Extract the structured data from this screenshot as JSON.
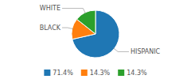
{
  "chart_data": {
    "type": "pie",
    "categories": [
      "HISPANIC",
      "BLACK",
      "WHITE"
    ],
    "values": [
      71.4,
      14.3,
      14.3
    ],
    "value_labels": [
      "71.4%",
      "14.3%",
      "14.3%"
    ],
    "legend": "bottom"
  }
}
